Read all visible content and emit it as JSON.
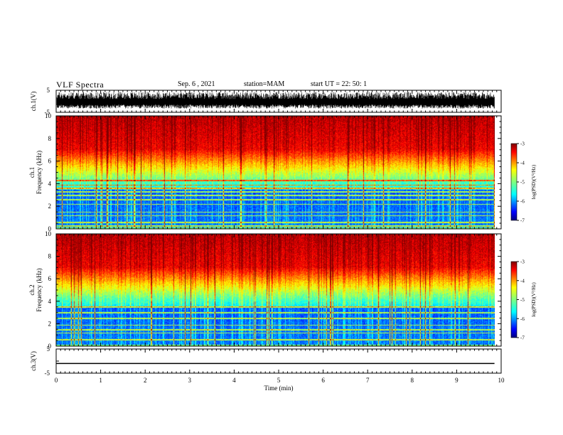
{
  "header": {
    "title": "VLF Spectra",
    "date": "Sep. 6 , 2021",
    "station": "station=MAM",
    "start": "start UT =  22: 50: 1"
  },
  "chart_data": [
    {
      "type": "line",
      "panel": "waveform-ch1",
      "ylabel": "ch.1(V)",
      "ylim": [
        -5,
        5
      ],
      "yticks": [
        "5",
        "-5"
      ],
      "x_range_min": [
        0,
        9.85
      ],
      "description_values": "dense noisy waveform roughly between -3 and 4 V"
    },
    {
      "type": "heatmap",
      "panel": "spectrogram-ch1",
      "ylabel": "ch.1\nFrequency (kHz)",
      "ylabel_lines": [
        "ch.1",
        "Frequency (kHz)"
      ],
      "ylim": [
        0,
        10
      ],
      "yticks": [
        "0",
        "2",
        "4",
        "6",
        "8",
        "10"
      ],
      "colorbar": {
        "label": "log(PSD)(V²/Hz)",
        "range": [
          -7,
          -3
        ],
        "ticks": [
          "-3",
          "-4",
          "-5",
          "-6",
          "-7"
        ]
      },
      "hum_lines_khz": [
        0.3,
        0.6,
        1.2,
        1.5,
        2.2,
        2.6,
        3.0,
        3.3,
        3.6,
        3.9,
        4.3
      ]
    },
    {
      "type": "heatmap",
      "panel": "spectrogram-ch2",
      "ylabel": "ch.2\nFrequency (kHz)",
      "ylabel_lines": [
        "ch.2",
        "Frequency (kHz)"
      ],
      "ylim": [
        0,
        10
      ],
      "yticks": [
        "0",
        "2",
        "4",
        "6",
        "8",
        "10"
      ],
      "colorbar": {
        "label": "log(PSD)(V²/Hz)",
        "range": [
          -7,
          -3
        ],
        "ticks": [
          "-3",
          "-4",
          "-5",
          "-6",
          "-7"
        ]
      },
      "hum_lines_khz": [
        0.6,
        1.2,
        1.5,
        1.9,
        2.5,
        3.0,
        3.5
      ]
    },
    {
      "type": "line",
      "panel": "waveform-ch3",
      "ylabel": "ch.3(V)",
      "ylim": [
        -5,
        5
      ],
      "yticks": [
        "5",
        "-5"
      ],
      "x": [
        0,
        9.85
      ],
      "y": [
        -1,
        -1
      ]
    }
  ],
  "xaxis": {
    "label": "Time (min)",
    "range": [
      0,
      10
    ],
    "ticks": [
      "0",
      "1",
      "2",
      "3",
      "4",
      "5",
      "6",
      "7",
      "8",
      "9",
      "10"
    ]
  },
  "colors": {
    "jet": [
      "#00007f",
      "#0000ff",
      "#007fff",
      "#00ffff",
      "#7fff7f",
      "#ffff00",
      "#ff7f00",
      "#ff0000",
      "#7f0000"
    ]
  }
}
